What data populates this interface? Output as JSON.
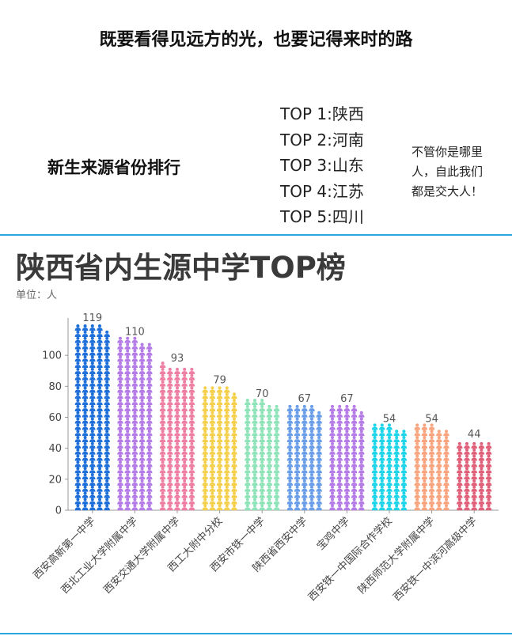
{
  "header": {
    "slogan": "既要看得见远方的光，也要记得来时的路",
    "rank_title": "新生来源省份排行",
    "top_list": [
      "TOP 1:陕西",
      "TOP 2:河南",
      "TOP 3:山东",
      "TOP 4:江苏",
      "TOP 5:四川"
    ],
    "welcome_lines": [
      "不管你是哪里",
      "人，自此我们",
      "都是交大人！"
    ]
  },
  "colors": {
    "divider": "#2aa7df"
  },
  "chart_data": {
    "type": "bar",
    "style": "pictograph-person-icons",
    "title": "陕西省内生源中学TOP榜",
    "subtitle": "单位：人",
    "xlabel": "",
    "ylabel": "",
    "ylim": [
      0,
      120
    ],
    "yticks": [
      0,
      20,
      40,
      60,
      80,
      100
    ],
    "categories": [
      "西安高新第一中学",
      "西北工业大学附属中学",
      "西安交通大学附属中学",
      "西工大附中分校",
      "西安市铁一中学",
      "陕西省西安中学",
      "宝鸡中学",
      "西安铁一中国际合作学校",
      "陕西师范大学附属中学",
      "西安铁一中滨河高级中学"
    ],
    "values": [
      119,
      110,
      93,
      79,
      70,
      67,
      67,
      54,
      54,
      44
    ],
    "colors": [
      "#1e6fd9",
      "#b57be6",
      "#ee7fa3",
      "#f4d04d",
      "#8fe3b8",
      "#6a9ee8",
      "#b57be6",
      "#1ed4e8",
      "#f8a47f",
      "#e0607a"
    ]
  }
}
